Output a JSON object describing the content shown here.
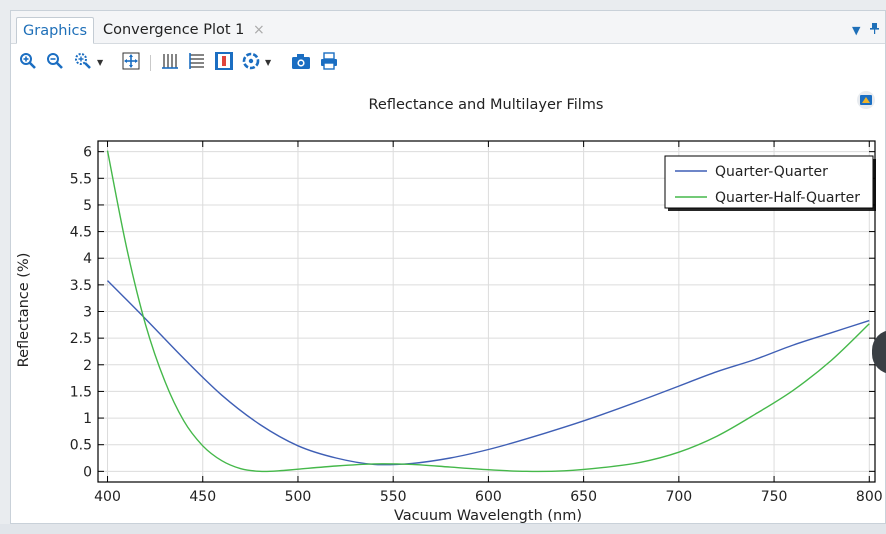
{
  "tabs": [
    {
      "label": "Graphics",
      "active": true
    },
    {
      "label": "Convergence Plot 1",
      "active": false,
      "close": "×"
    }
  ],
  "tab_menu": {
    "dropdown": "▾",
    "pin": "📌"
  },
  "toolbar": {
    "icons": [
      "zoom-in-icon",
      "zoom-out-icon",
      "zoom-box-icon",
      "zoom-extents-icon",
      "grid-lines-icon",
      "legend-icon",
      "color-table-icon",
      "scene-light-icon",
      "camera-icon",
      "print-icon"
    ]
  },
  "chart_data": {
    "type": "line",
    "title": "Reflectance and Multilayer Films",
    "xlabel": "Vacuum Wavelength (nm)",
    "ylabel": "Reflectance (%)",
    "xlim": [
      395,
      803
    ],
    "ylim": [
      -0.2,
      6.2
    ],
    "xticks": [
      400,
      450,
      500,
      550,
      600,
      650,
      700,
      750,
      800
    ],
    "xtick_labels": [
      "400",
      "450",
      "500",
      "550",
      "600",
      "650",
      "700",
      "750",
      "800"
    ],
    "yticks": [
      0,
      0.5,
      1,
      1.5,
      2,
      2.5,
      3,
      3.5,
      4,
      4.5,
      5,
      5.5,
      6
    ],
    "ytick_labels": [
      "0",
      "0.5",
      "1",
      "1.5",
      "2",
      "2.5",
      "3",
      "3.5",
      "4",
      "4.5",
      "5",
      "5.5",
      "6"
    ],
    "grid": true,
    "legend": "top-right",
    "series": [
      {
        "name": "Quarter-Quarter",
        "color": "#3f5fb5",
        "x": [
          400,
          420,
          440,
          460,
          480,
          500,
          520,
          540,
          560,
          580,
          600,
          620,
          640,
          660,
          680,
          700,
          720,
          740,
          760,
          780,
          800
        ],
        "y": [
          3.58,
          2.86,
          2.12,
          1.43,
          0.88,
          0.48,
          0.25,
          0.13,
          0.15,
          0.25,
          0.41,
          0.61,
          0.83,
          1.07,
          1.33,
          1.6,
          1.87,
          2.1,
          2.37,
          2.6,
          2.83
        ]
      },
      {
        "name": "Quarter-Half-Quarter",
        "color": "#45b84a",
        "x": [
          400,
          410,
          420,
          430,
          440,
          450,
          460,
          470,
          480,
          490,
          500,
          520,
          540,
          560,
          580,
          600,
          620,
          640,
          660,
          680,
          700,
          720,
          740,
          760,
          780,
          800
        ],
        "y": [
          6.02,
          4.2,
          2.75,
          1.7,
          0.95,
          0.48,
          0.2,
          0.05,
          0.0,
          0.01,
          0.04,
          0.1,
          0.14,
          0.13,
          0.08,
          0.03,
          0.0,
          0.01,
          0.07,
          0.17,
          0.36,
          0.66,
          1.07,
          1.52,
          2.08,
          2.77
        ]
      }
    ]
  }
}
